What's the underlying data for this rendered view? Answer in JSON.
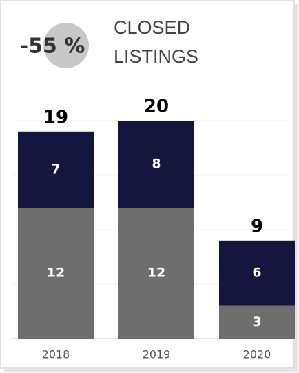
{
  "chart_data": {
    "type": "stacked_bar",
    "badge": "-55 %",
    "title": [
      "CLOSED",
      "LISTINGS"
    ],
    "categories": [
      "2018",
      "2019",
      "2020"
    ],
    "series": [
      {
        "color": "#6e6e6e",
        "values": [
          12,
          12,
          3
        ]
      },
      {
        "color": "#15163d",
        "values": [
          7,
          8,
          6
        ]
      }
    ],
    "totals": [
      19,
      20,
      9
    ],
    "ylim": [
      0,
      20
    ],
    "yticks": [
      0,
      5,
      10,
      15,
      20
    ],
    "grid": true
  }
}
